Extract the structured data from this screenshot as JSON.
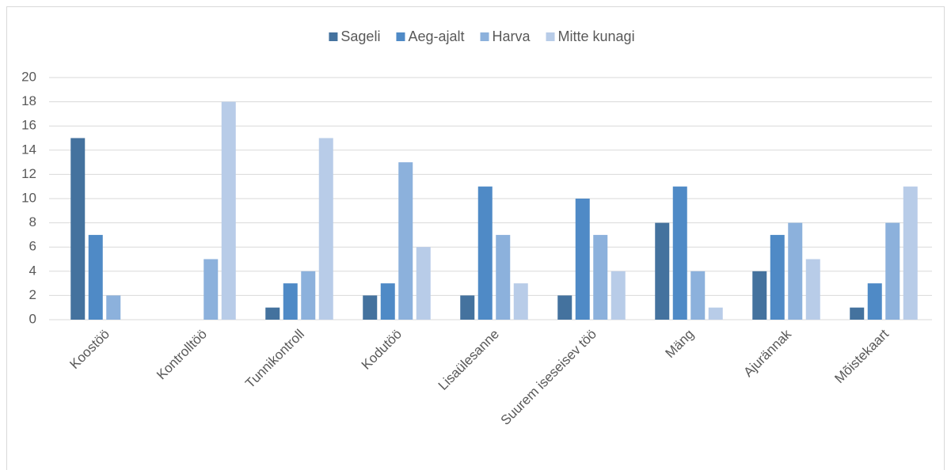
{
  "chart_data": {
    "type": "bar",
    "categories": [
      "Koostöö",
      "Kontrolltöö",
      "Tunnikontroll",
      "Kodutöö",
      "Lisaülesanne",
      "Suurem iseseisev töö",
      "Mäng",
      "Ajurännak",
      "Mõistekaart"
    ],
    "series": [
      {
        "name": "Sageli",
        "color": "#44729e",
        "values": [
          15,
          0,
          1,
          2,
          2,
          2,
          8,
          4,
          1
        ]
      },
      {
        "name": "Aeg-ajalt",
        "color": "#4f8ac6",
        "values": [
          7,
          0,
          3,
          3,
          11,
          10,
          11,
          7,
          3
        ]
      },
      {
        "name": "Harva",
        "color": "#8cb1dc",
        "values": [
          2,
          5,
          4,
          13,
          7,
          7,
          4,
          8,
          8
        ]
      },
      {
        "name": "Mitte kunagi",
        "color": "#b8cce8",
        "values": [
          0,
          18,
          15,
          6,
          3,
          4,
          1,
          5,
          11
        ]
      }
    ],
    "ylim": [
      0,
      20
    ],
    "yticks": [
      0,
      2,
      4,
      6,
      8,
      10,
      12,
      14,
      16,
      18,
      20
    ],
    "grid": true,
    "legend": "top"
  }
}
